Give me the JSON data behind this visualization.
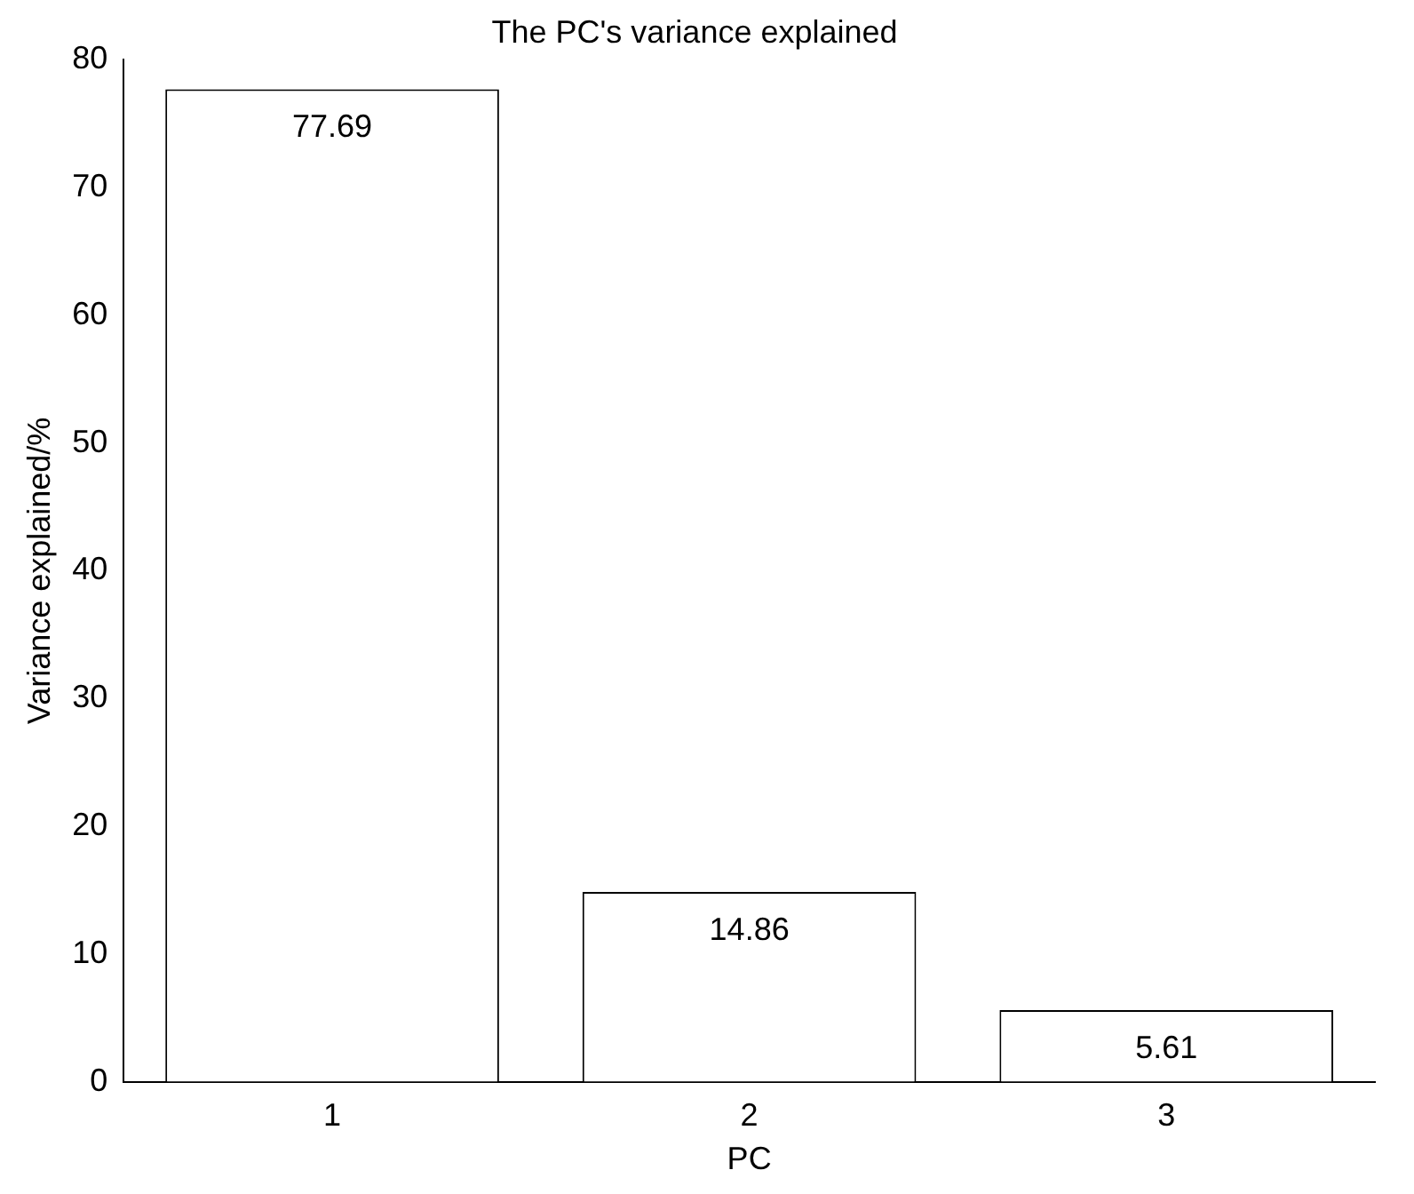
{
  "chart_data": {
    "type": "bar",
    "title": "The PC's variance explained",
    "xlabel": "PC",
    "ylabel": "Variance explained/%",
    "categories": [
      "1",
      "2",
      "3"
    ],
    "values": [
      77.69,
      14.86,
      5.61
    ],
    "color": "#ffffff",
    "ylim": [
      0,
      80
    ],
    "yticks": [
      0,
      10,
      20,
      30,
      40,
      50,
      60,
      70,
      80
    ],
    "grid": false,
    "legend": false,
    "data_labels": true
  }
}
